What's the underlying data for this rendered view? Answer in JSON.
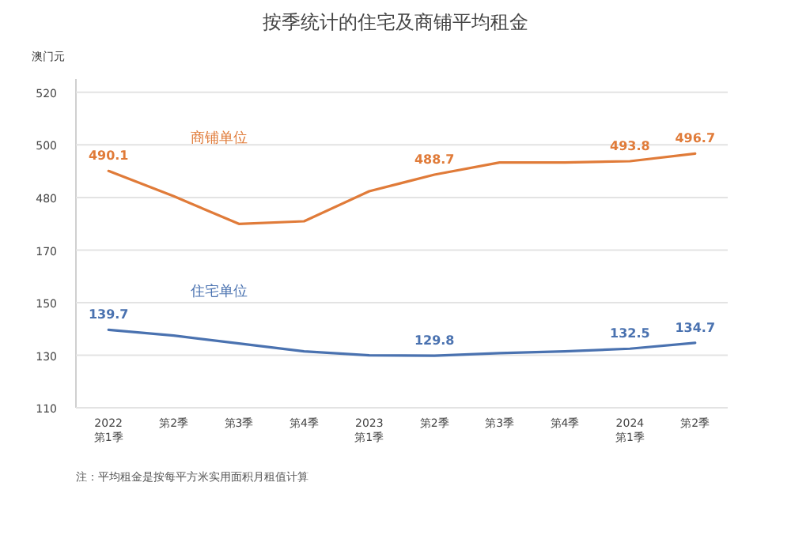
{
  "chart_data": [
    {
      "type": "line",
      "title": "按季统计的住宅及商铺平均租金",
      "ylabel": "澳门元",
      "series": [
        {
          "name": "商铺单位",
          "color": "#e07b39",
          "values": [
            490.1,
            480.5,
            470,
            471,
            482.4,
            488.7,
            493.3,
            493.3,
            493.8,
            496.7
          ],
          "value_labels": [
            "490.1",
            null,
            null,
            null,
            null,
            "488.7",
            null,
            null,
            "493.8",
            "496.7"
          ]
        }
      ],
      "ylim": [
        465,
        525
      ],
      "yticks": [
        480,
        500,
        520
      ],
      "grid": "y",
      "tick_labels": "y",
      "legend": false,
      "marker": "none"
    },
    {
      "type": "line",
      "categories": [
        "2022\n第1季",
        "第2季",
        "第3季",
        "第4季",
        "2023\n第1季",
        "第2季",
        "第3季",
        "第4季",
        "2024\n第1季",
        "第2季"
      ],
      "series": [
        {
          "name": "住宅单位",
          "color": "#4a72b0",
          "values": [
            139.7,
            137.5,
            134.5,
            131.5,
            130,
            129.8,
            130.8,
            131.5,
            132.5,
            134.7
          ],
          "value_labels": [
            "139.7",
            null,
            null,
            null,
            null,
            "129.8",
            null,
            null,
            "132.5",
            "134.7"
          ]
        }
      ],
      "ylim": [
        110,
        175
      ],
      "yticks": [
        110,
        130,
        150,
        170
      ],
      "grid": "y",
      "legend": false,
      "marker": "none",
      "annotations": [
        "注：平均租金是按每平方米实用面积月租值计算"
      ]
    }
  ]
}
